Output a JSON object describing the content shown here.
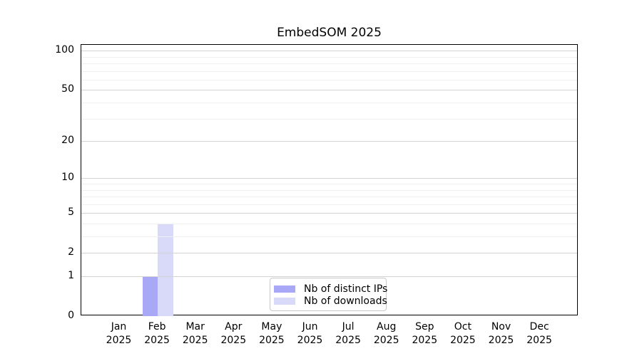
{
  "chart_data": {
    "type": "bar",
    "title": "EmbedSOM 2025",
    "categories": [
      "Jan 2025",
      "Feb 2025",
      "Mar 2025",
      "Apr 2025",
      "May 2025",
      "Jun 2025",
      "Jul 2025",
      "Aug 2025",
      "Sep 2025",
      "Oct 2025",
      "Nov 2025",
      "Dec 2025"
    ],
    "series": [
      {
        "name": "Nb of distinct IPs",
        "color": "#a8a8f6",
        "values": [
          0,
          1,
          0,
          0,
          0,
          0,
          0,
          0,
          0,
          0,
          0,
          0
        ]
      },
      {
        "name": "Nb of downloads",
        "color": "#d9d9fa",
        "values": [
          0,
          4,
          0,
          0,
          0,
          0,
          0,
          0,
          0,
          0,
          0,
          0
        ]
      }
    ],
    "y_axis": {
      "scale": "log1p",
      "major_ticks": [
        0,
        1,
        2,
        5,
        10,
        20,
        50,
        100
      ],
      "minor_ticks": [
        3,
        4,
        6,
        7,
        8,
        9,
        30,
        40,
        60,
        70,
        80,
        90
      ],
      "max": 100
    },
    "x_axis": {
      "tick_labels_two_lines": true
    },
    "legend": {
      "position": "lower center"
    },
    "grid": {
      "major_color": "#d3d3d3",
      "minor_color": "#efefef"
    },
    "frame_color": "#000000",
    "background": "#ffffff"
  }
}
